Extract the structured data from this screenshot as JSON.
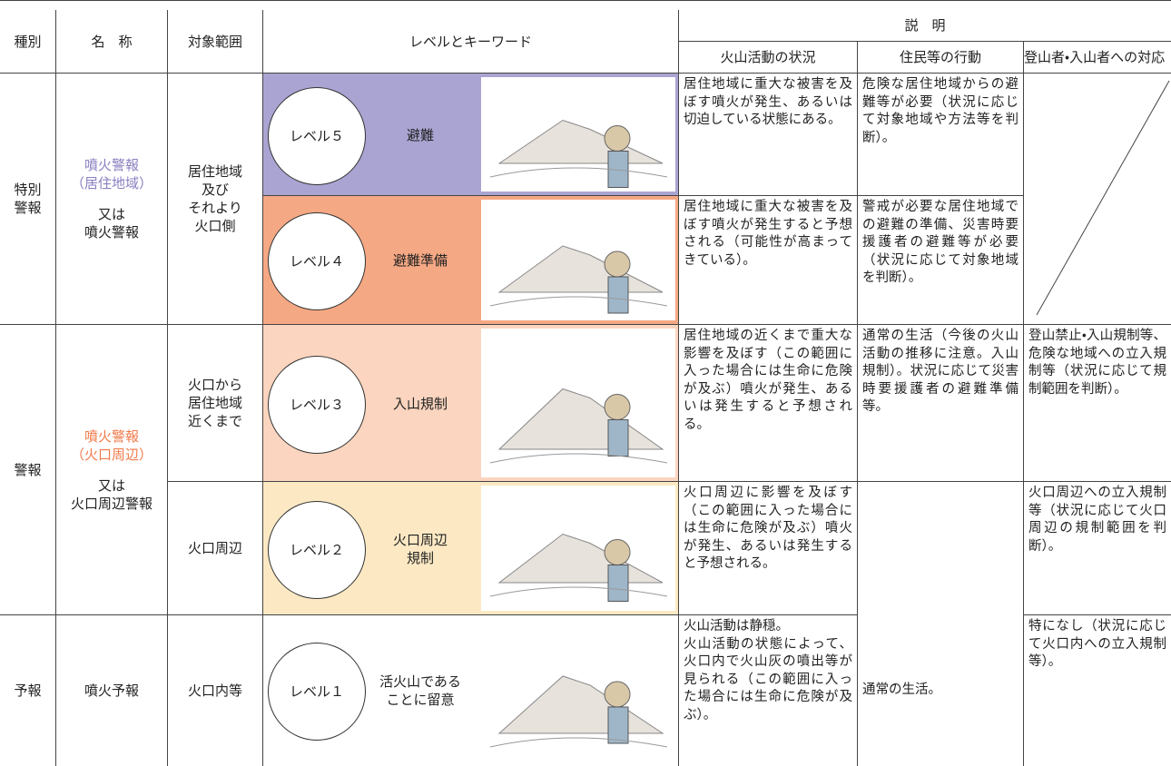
{
  "header": {
    "type": "種別",
    "name": "名　称",
    "scope": "対象範囲",
    "level_keyword": "レベルとキーワード",
    "description": "説　明",
    "situation": "火山活動の状況",
    "residents": "住民等の行動",
    "climbers": "登山者・入山者への対応"
  },
  "groups": [
    {
      "type": "特別\n警報",
      "name": "噴火警報\n（居住地域）",
      "name_alt": "又は\n噴火警報"
    },
    {
      "type": "警報",
      "name": "噴火警報\n（火口周辺）",
      "name_alt": "又は\n火口周辺警報"
    },
    {
      "type": "予報",
      "name": "噴火予報"
    }
  ],
  "scopes": [
    "居住地域\n及び\nそれより\n火口側",
    "火口から\n居住地域\n近くまで",
    "火口周辺",
    "火口内等"
  ],
  "levels": [
    {
      "label": "レベル５",
      "keyword": "避難",
      "situation": "居住地域に重大な被害を及ぼす噴火が発生、あるいは切迫している状態にある。",
      "residents": "危険な居住地域からの避難等が必要（状況に応じて対象地域や方法等を判断）。"
    },
    {
      "label": "レベル４",
      "keyword": "避難準備",
      "situation": "居住地域に重大な被害を及ぼす噴火が発生すると予想される（可能性が高まってきている）。",
      "residents": "警戒が必要な居住地域での避難の準備、災害時要援護者の避難等が必要（状況に応じて対象地域を判断）。"
    },
    {
      "label": "レベル３",
      "keyword": "入山規制",
      "situation": "居住地域の近くまで重大な影響を及ぼす（この範囲に入った場合には生命に危険が及ぶ）噴火が発生、あるいは発生すると予想される。",
      "residents": "通常の生活（今後の火山活動の推移に注意。入山規制）。状況に応じて災害時要援護者の避難準備等。",
      "climbers": "登山禁止・入山規制等、危険な地域への立入規制等（状況に応じて規制範囲を判断）。"
    },
    {
      "label": "レベル２",
      "keyword": "火口周辺\n規制",
      "situation": "火口周辺に影響を及ぼす（この範囲に入った場合には生命に危険が及ぶ）噴火が発生、あるいは発生すると予想される。",
      "climbers": "火口周辺への立入規制等（状況に応じて火口周辺の規制範囲を判断）。"
    },
    {
      "label": "レベル１",
      "keyword": "活火山である\nことに留意",
      "situation": "火山活動は静穏。\n火山活動の状態によって、火口内で火山灰の噴出等が見られる（この範囲に入った場合には生命に危険が及ぶ）。",
      "climbers": "特になし（状況に応じて火口内への立入規制等）。"
    }
  ],
  "residents_common": "通常の生活。"
}
